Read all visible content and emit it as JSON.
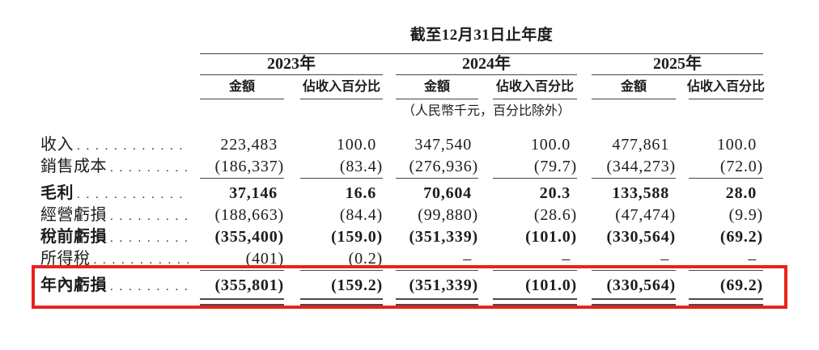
{
  "page": {
    "background": "#ffffff"
  },
  "table": {
    "period_header": "截至12月31日止年度",
    "unit_note": "（人民幣千元，百分比除外）",
    "year_groups": [
      {
        "year": "2023年",
        "amount_label": "金額",
        "percent_label": "佔收入百分比"
      },
      {
        "year": "2024年",
        "amount_label": "金額",
        "percent_label": "佔收入百分比"
      },
      {
        "year": "2025年",
        "amount_label": "金額",
        "percent_label": "佔收入百分比"
      }
    ],
    "leader_dots": ". . . . . . . . . . . . . . . . . . . . . . . . . . . .",
    "rows": [
      {
        "label": "收入",
        "bold": false,
        "values": [
          "223,483",
          "100.0",
          "347,540",
          "100.0",
          "477,861",
          "100.0"
        ]
      },
      {
        "label": "銷售成本",
        "bold": false,
        "values": [
          "(186,337)",
          "(83.4)",
          "(276,936)",
          "(79.7)",
          "(344,273)",
          "(72.0)"
        ]
      },
      {
        "label": "毛利",
        "bold": true,
        "values": [
          "37,146",
          "16.6",
          "70,604",
          "20.3",
          "133,588",
          "28.0"
        ]
      },
      {
        "label": "經營虧損",
        "bold": false,
        "values": [
          "(188,663)",
          "(84.4)",
          "(99,880)",
          "(28.6)",
          "(47,474)",
          "(9.9)"
        ]
      },
      {
        "label": "稅前虧損",
        "bold": true,
        "values": [
          "(355,400)",
          "(159.0)",
          "(351,339)",
          "(101.0)",
          "(330,564)",
          "(69.2)"
        ]
      },
      {
        "label": "所得稅",
        "bold": false,
        "values": [
          "(401)",
          "(0.2)",
          "–",
          "–",
          "–",
          "–"
        ]
      },
      {
        "label": "年內虧損",
        "bold": true,
        "values": [
          "(355,801)",
          "(159.2)",
          "(351,339)",
          "(101.0)",
          "(330,564)",
          "(69.2)"
        ]
      }
    ],
    "highlight": {
      "row_label": "年內虧損",
      "color": "#e8231d"
    }
  }
}
